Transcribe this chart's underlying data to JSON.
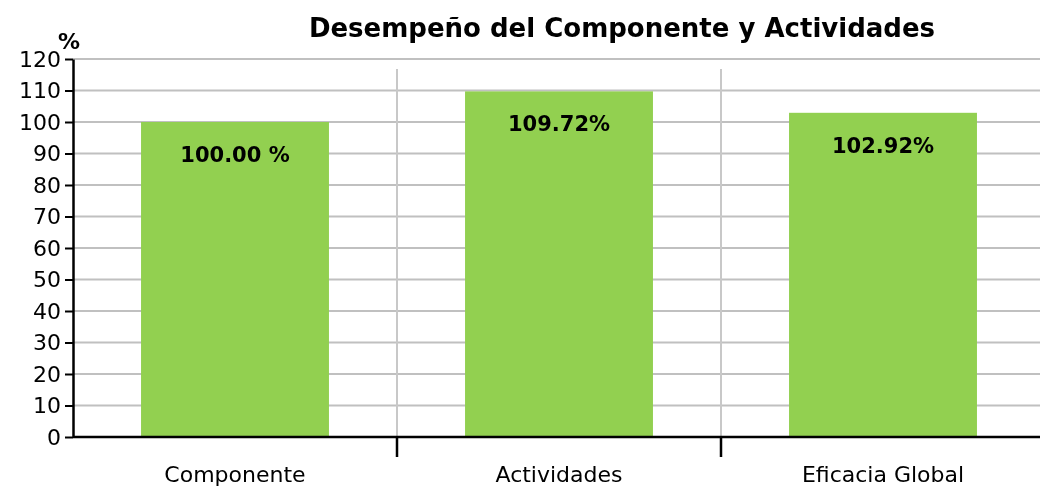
{
  "chart_data": {
    "type": "bar",
    "title": "Desempeño del Componente y Actividades",
    "ylabel": "%",
    "categories": [
      "Componente",
      "Actividades",
      "Eficacia Global"
    ],
    "values": [
      100.0,
      109.72,
      102.92
    ],
    "value_labels": [
      "100.00 %",
      "109.72%",
      "102.92%"
    ],
    "color": "#92d050",
    "ylim": [
      0,
      120
    ],
    "yticks": [
      0,
      10,
      20,
      30,
      40,
      50,
      60,
      70,
      80,
      90,
      100,
      110,
      120
    ],
    "grid": true
  }
}
